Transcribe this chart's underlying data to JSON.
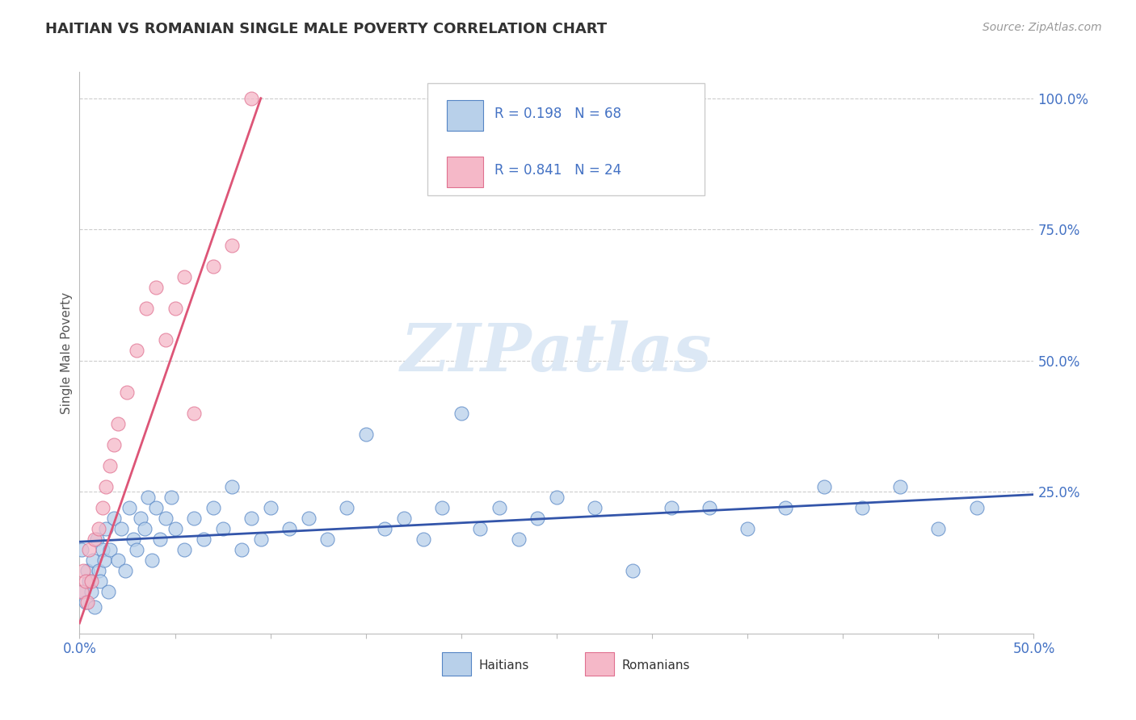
{
  "title": "HAITIAN VS ROMANIAN SINGLE MALE POVERTY CORRELATION CHART",
  "source_text": "Source: ZipAtlas.com",
  "ylabel": "Single Male Poverty",
  "xlim": [
    0.0,
    0.5
  ],
  "ylim": [
    -0.02,
    1.05
  ],
  "xticks": [
    0.0,
    0.05,
    0.1,
    0.15,
    0.2,
    0.25,
    0.3,
    0.35,
    0.4,
    0.45,
    0.5
  ],
  "xticklabels": [
    "0.0%",
    "",
    "",
    "",
    "",
    "",
    "",
    "",
    "",
    "",
    "50.0%"
  ],
  "yticks_right": [
    0.25,
    0.5,
    0.75,
    1.0
  ],
  "yticklabels_right": [
    "25.0%",
    "50.0%",
    "75.0%",
    "100.0%"
  ],
  "haitian_fill": "#b8d0ea",
  "haitian_edge": "#5585c5",
  "romanian_fill": "#f5b8c8",
  "romanian_edge": "#e07090",
  "haitian_line_color": "#3355aa",
  "romanian_line_color": "#dd5577",
  "legend_r_color": "#4472c4",
  "legend_n_color": "#cc3333",
  "tick_color": "#4472c4",
  "watermark_text": "ZIPatlas",
  "watermark_color": "#dce8f5",
  "background_color": "#ffffff",
  "grid_color": "#cccccc",
  "title_color": "#333333",
  "source_color": "#999999",
  "ylabel_color": "#555555",
  "haitian_x": [
    0.001,
    0.002,
    0.003,
    0.004,
    0.005,
    0.006,
    0.007,
    0.008,
    0.009,
    0.01,
    0.011,
    0.012,
    0.013,
    0.014,
    0.015,
    0.016,
    0.018,
    0.02,
    0.022,
    0.024,
    0.026,
    0.028,
    0.03,
    0.032,
    0.034,
    0.036,
    0.038,
    0.04,
    0.042,
    0.045,
    0.048,
    0.05,
    0.055,
    0.06,
    0.065,
    0.07,
    0.075,
    0.08,
    0.085,
    0.09,
    0.095,
    0.1,
    0.11,
    0.12,
    0.13,
    0.14,
    0.15,
    0.16,
    0.17,
    0.18,
    0.19,
    0.2,
    0.21,
    0.22,
    0.23,
    0.24,
    0.25,
    0.27,
    0.29,
    0.31,
    0.33,
    0.35,
    0.37,
    0.39,
    0.41,
    0.43,
    0.45,
    0.47
  ],
  "haitian_y": [
    0.14,
    0.06,
    0.04,
    0.1,
    0.08,
    0.06,
    0.12,
    0.03,
    0.16,
    0.1,
    0.08,
    0.14,
    0.12,
    0.18,
    0.06,
    0.14,
    0.2,
    0.12,
    0.18,
    0.1,
    0.22,
    0.16,
    0.14,
    0.2,
    0.18,
    0.24,
    0.12,
    0.22,
    0.16,
    0.2,
    0.24,
    0.18,
    0.14,
    0.2,
    0.16,
    0.22,
    0.18,
    0.26,
    0.14,
    0.2,
    0.16,
    0.22,
    0.18,
    0.2,
    0.16,
    0.22,
    0.36,
    0.18,
    0.2,
    0.16,
    0.22,
    0.4,
    0.18,
    0.22,
    0.16,
    0.2,
    0.24,
    0.22,
    0.1,
    0.22,
    0.22,
    0.18,
    0.22,
    0.26,
    0.22,
    0.26,
    0.18,
    0.22
  ],
  "romanian_x": [
    0.001,
    0.002,
    0.003,
    0.004,
    0.005,
    0.006,
    0.008,
    0.01,
    0.012,
    0.014,
    0.016,
    0.018,
    0.02,
    0.025,
    0.03,
    0.035,
    0.04,
    0.045,
    0.05,
    0.055,
    0.06,
    0.07,
    0.08,
    0.09
  ],
  "romanian_y": [
    0.06,
    0.1,
    0.08,
    0.04,
    0.14,
    0.08,
    0.16,
    0.18,
    0.22,
    0.26,
    0.3,
    0.34,
    0.38,
    0.44,
    0.52,
    0.6,
    0.64,
    0.54,
    0.6,
    0.66,
    0.4,
    0.68,
    0.72,
    1.0
  ],
  "haitian_trend_x": [
    0.0,
    0.5
  ],
  "haitian_trend_y": [
    0.155,
    0.245
  ],
  "romanian_trend_x": [
    0.0,
    0.095
  ],
  "romanian_trend_y": [
    0.0,
    1.0
  ]
}
